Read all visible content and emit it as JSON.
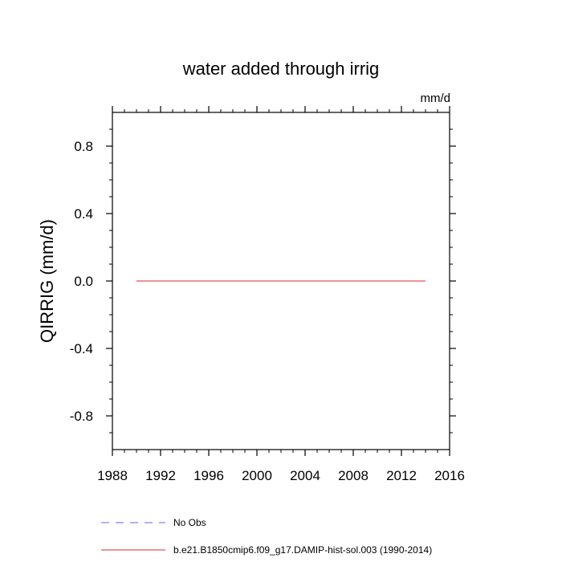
{
  "chart_data": {
    "type": "line",
    "title": "water added through irrig",
    "units_label": "mm/d",
    "ylabel": "QIRRIG  (mm/d)",
    "xlabel": "",
    "xlim": [
      1988,
      2016
    ],
    "ylim": [
      -1.0,
      1.0
    ],
    "x_ticks": [
      1988,
      1992,
      1996,
      2000,
      2004,
      2008,
      2012,
      2016
    ],
    "x_tick_labels": [
      "1988",
      "1992",
      "1996",
      "2000",
      "2004",
      "2008",
      "2012",
      "2016"
    ],
    "y_ticks": [
      -0.8,
      -0.4,
      0.0,
      0.4,
      0.8
    ],
    "y_tick_labels": [
      "-0.8",
      "-0.4",
      "0.0",
      "0.4",
      "0.8"
    ],
    "y_minor_step": 0.1,
    "grid": false,
    "legend_position": "bottom",
    "series": [
      {
        "name": "No Obs",
        "color": "#8080ff",
        "dash": "dashed",
        "x": [],
        "y": []
      },
      {
        "name": "b.e21.B1850cmip6.f09_g17.DAMIP-hist-sol.003 (1990-2014)",
        "color": "#e05555",
        "dash": "solid",
        "x": [
          1990,
          1991,
          1992,
          1993,
          1994,
          1995,
          1996,
          1997,
          1998,
          1999,
          2000,
          2001,
          2002,
          2003,
          2004,
          2005,
          2006,
          2007,
          2008,
          2009,
          2010,
          2011,
          2012,
          2013,
          2014
        ],
        "y": [
          0,
          0,
          0,
          0,
          0,
          0,
          0,
          0,
          0,
          0,
          0,
          0,
          0,
          0,
          0,
          0,
          0,
          0,
          0,
          0,
          0,
          0,
          0,
          0,
          0
        ]
      }
    ]
  }
}
